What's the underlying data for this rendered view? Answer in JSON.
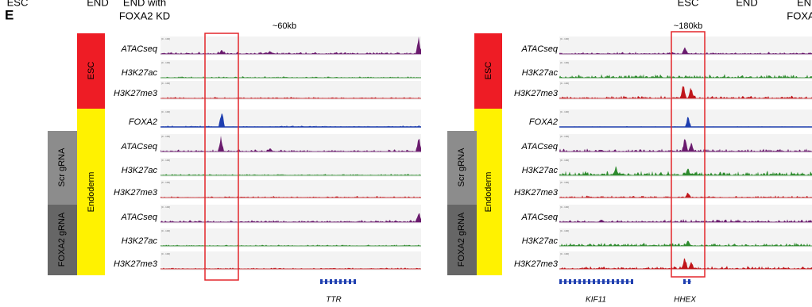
{
  "panel_label": "E",
  "header_texts": [
    "ESC",
    "END",
    "END with",
    "FOXA2 KD",
    "ESC",
    "END",
    "EN",
    "FOXA"
  ],
  "panels": [
    {
      "scale": "~60kb",
      "range_label": "[0 - 100]",
      "groups": {
        "esc": "ESC",
        "endoderm": "Endoderm",
        "scr": "Scr gRNA",
        "kd": "FOXA2 gRNA"
      },
      "tracks": [
        "ATACseq",
        "H3K27ac",
        "H3K27me3",
        "FOXA2",
        "ATACseq",
        "H3K27ac",
        "H3K27me3",
        "ATACseq",
        "H3K27ac",
        "H3K27me3"
      ],
      "genes": [
        "TTR"
      ]
    },
    {
      "scale": "~180kb",
      "range_label": "[0 - 100]",
      "groups": {
        "esc": "ESC",
        "endoderm": "Endoderm",
        "scr": "Scr gRNA",
        "kd": "FOXA2 gRNA"
      },
      "tracks": [
        "ATACseq",
        "H3K27ac",
        "H3K27me3",
        "FOXA2",
        "ATACseq",
        "H3K27ac",
        "H3K27me3",
        "ATACseq",
        "H3K27ac",
        "H3K27me3"
      ],
      "genes": [
        "KIF11",
        "HHEX"
      ]
    }
  ]
}
